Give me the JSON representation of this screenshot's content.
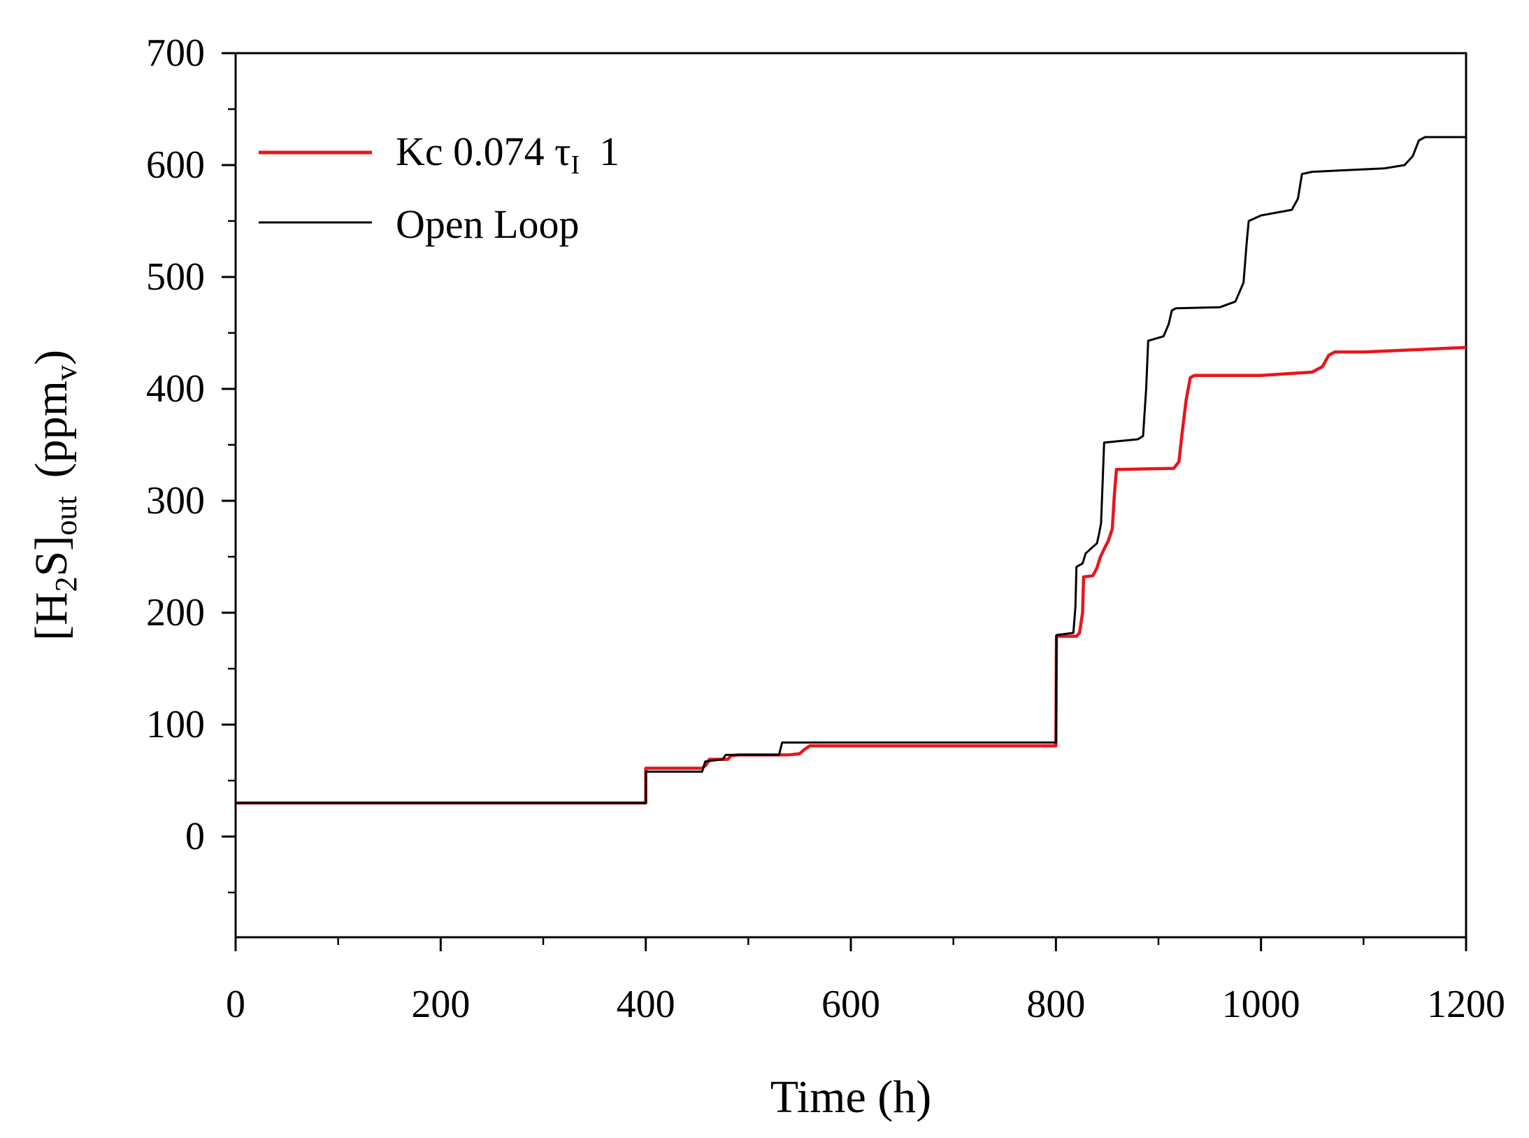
{
  "chart_data": {
    "type": "line",
    "title": "",
    "xlabel": "Time (h)",
    "ylabel": {
      "prefix": "[H",
      "sub1": "2",
      "mid": "S]",
      "sub2": "out",
      "suffix1": "(ppm",
      "sub3": "v",
      "suffix2": ")"
    },
    "xlim": [
      0,
      1200
    ],
    "ylim": [
      -90,
      700
    ],
    "x_ticks": [
      0,
      200,
      400,
      600,
      800,
      1000,
      1200
    ],
    "y_ticks": [
      0,
      100,
      200,
      300,
      400,
      500,
      600,
      700
    ],
    "x_minor_step": 100,
    "y_minor_step": 50,
    "legend_position": "top-left",
    "series": [
      {
        "name": "Kc 0.074 τI 1",
        "legend": {
          "main": "Kc 0.074 τ",
          "sub": "I",
          "tail": "1"
        },
        "color": "#e8161b",
        "points": [
          [
            0,
            30
          ],
          [
            400,
            30
          ],
          [
            400,
            61
          ],
          [
            455,
            61
          ],
          [
            459,
            64
          ],
          [
            462,
            69
          ],
          [
            480,
            69
          ],
          [
            483,
            72
          ],
          [
            490,
            73
          ],
          [
            540,
            73
          ],
          [
            550,
            74
          ],
          [
            555,
            78
          ],
          [
            560,
            81
          ],
          [
            800,
            81
          ],
          [
            800.5,
            179
          ],
          [
            820,
            179
          ],
          [
            823,
            182
          ],
          [
            826,
            200
          ],
          [
            827,
            232
          ],
          [
            836,
            233
          ],
          [
            840,
            240
          ],
          [
            843,
            249
          ],
          [
            847,
            257
          ],
          [
            851,
            264
          ],
          [
            855,
            275
          ],
          [
            857,
            305
          ],
          [
            859,
            328
          ],
          [
            915,
            329
          ],
          [
            920,
            335
          ],
          [
            923,
            360
          ],
          [
            927,
            390
          ],
          [
            931,
            410
          ],
          [
            935,
            412
          ],
          [
            1000,
            412
          ],
          [
            1050,
            415
          ],
          [
            1060,
            420
          ],
          [
            1066,
            430
          ],
          [
            1072,
            433
          ],
          [
            1100,
            433
          ],
          [
            1200,
            437
          ]
        ]
      },
      {
        "name": "Open Loop",
        "legend": {
          "main": "Open Loop",
          "sub": "",
          "tail": ""
        },
        "color": "#000000",
        "points": [
          [
            0,
            30
          ],
          [
            400,
            30
          ],
          [
            400,
            58
          ],
          [
            455,
            58
          ],
          [
            458,
            67
          ],
          [
            475,
            69
          ],
          [
            478,
            73
          ],
          [
            530,
            73
          ],
          [
            533,
            84
          ],
          [
            800,
            84
          ],
          [
            800.5,
            180
          ],
          [
            817,
            182
          ],
          [
            819,
            205
          ],
          [
            820,
            241
          ],
          [
            826,
            244
          ],
          [
            829,
            253
          ],
          [
            835,
            258
          ],
          [
            840,
            262
          ],
          [
            842,
            270
          ],
          [
            844,
            280
          ],
          [
            847,
            352
          ],
          [
            880,
            355
          ],
          [
            885,
            358
          ],
          [
            888,
            400
          ],
          [
            890,
            443
          ],
          [
            905,
            447
          ],
          [
            910,
            458
          ],
          [
            913,
            470
          ],
          [
            917,
            472
          ],
          [
            960,
            473
          ],
          [
            975,
            478
          ],
          [
            983,
            495
          ],
          [
            986,
            530
          ],
          [
            988,
            550
          ],
          [
            1000,
            555
          ],
          [
            1030,
            560
          ],
          [
            1036,
            570
          ],
          [
            1040,
            592
          ],
          [
            1050,
            594
          ],
          [
            1120,
            597
          ],
          [
            1140,
            600
          ],
          [
            1148,
            608
          ],
          [
            1154,
            622
          ],
          [
            1160,
            625
          ],
          [
            1200,
            625
          ]
        ]
      }
    ]
  }
}
